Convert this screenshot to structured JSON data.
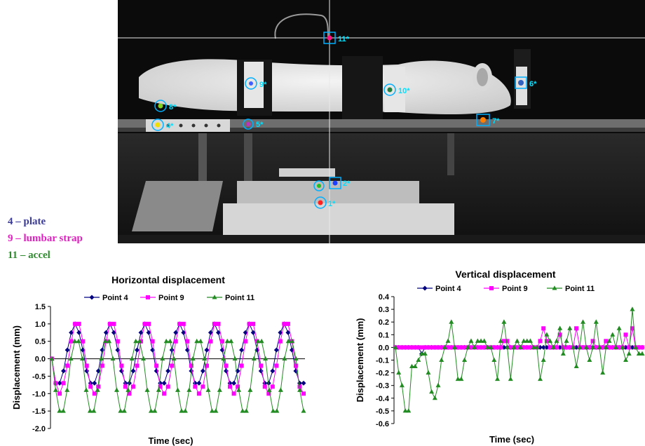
{
  "photo": {
    "description_markers": [
      "1*",
      "2*",
      "4*",
      "5*",
      "6*",
      "7*",
      "8*",
      "9*",
      "10*",
      "11*"
    ]
  },
  "key": [
    {
      "text": "4 – plate",
      "color": "#3b3b9b"
    },
    {
      "text": "9 – lumbar strap",
      "color": "#e020c0"
    },
    {
      "text": "11 – accel",
      "color": "#2e8b2e"
    }
  ],
  "chart_data": [
    {
      "type": "line",
      "title": "Horizontal displacement",
      "xlabel": "Time (sec)",
      "ylabel": "Displacement (mm)",
      "ylim": [
        -2.0,
        1.5
      ],
      "yticks": [
        "1.5",
        "1.0",
        "0.5",
        "0.0",
        "-0.5",
        "-1.0",
        "-1.5",
        "-2.0"
      ],
      "grid": false,
      "legend": "top",
      "series": [
        {
          "name": "Point 4",
          "color": "#000080",
          "marker": "diamond",
          "values": [
            0,
            -0.7,
            -0.7,
            -0.35,
            0.25,
            0.75,
            1.0,
            0.75,
            0.25,
            -0.35,
            -0.7,
            -0.7,
            -0.35,
            0.25,
            0.75,
            1.0,
            0.75,
            0.25,
            -0.35,
            -0.7,
            -0.7,
            -0.35,
            0.25,
            0.75,
            1.0,
            0.75,
            0.25,
            -0.35,
            -0.7,
            -0.7,
            -0.35,
            0.25,
            0.75,
            1.0,
            0.75,
            0.25,
            -0.35,
            -0.7,
            -0.7,
            -0.35,
            0.25,
            0.75,
            1.0,
            0.75,
            0.25,
            -0.35,
            -0.7,
            -0.7,
            -0.35,
            0.25,
            0.75,
            1.0,
            0.75,
            0.25,
            -0.35,
            -0.7,
            -0.7,
            -0.35,
            0.25,
            0.75,
            1.0,
            0.75,
            0.25,
            -0.35,
            -0.7,
            -0.7
          ]
        },
        {
          "name": "Point 9",
          "color": "#ff00ff",
          "marker": "square",
          "values": [
            0,
            -0.7,
            -1.0,
            -0.7,
            -0.2,
            0.5,
            1.0,
            1.0,
            0.5,
            -0.2,
            -0.8,
            -1.0,
            -0.8,
            -0.2,
            0.5,
            1.0,
            1.0,
            0.5,
            -0.2,
            -0.8,
            -1.0,
            -0.8,
            -0.2,
            0.5,
            1.0,
            1.0,
            0.5,
            -0.2,
            -0.8,
            -1.0,
            -0.8,
            -0.2,
            0.5,
            1.0,
            1.0,
            0.5,
            -0.2,
            -0.8,
            -1.0,
            -0.8,
            -0.2,
            0.5,
            1.0,
            1.0,
            0.5,
            -0.2,
            -0.8,
            -1.0,
            -0.8,
            -0.2,
            0.5,
            1.0,
            1.0,
            0.5,
            -0.2,
            -0.8,
            -1.0,
            -0.8,
            -0.2,
            0.5,
            1.0,
            1.0,
            0.5,
            -0.2,
            -0.8,
            -1.0
          ]
        },
        {
          "name": "Point 11",
          "color": "#228b22",
          "marker": "triangle",
          "values": [
            0,
            -0.9,
            -1.5,
            -1.5,
            -0.9,
            0,
            0.5,
            0.5,
            0,
            -0.9,
            -1.5,
            -1.5,
            -0.9,
            0,
            0.5,
            0.5,
            0,
            -0.9,
            -1.5,
            -1.5,
            -0.9,
            0,
            0.5,
            0.5,
            0,
            -0.9,
            -1.5,
            -1.5,
            -0.9,
            0,
            0.5,
            0.5,
            0,
            -0.9,
            -1.5,
            -1.5,
            -0.9,
            0,
            0.5,
            0.5,
            0,
            -0.9,
            -1.5,
            -1.5,
            -0.9,
            0,
            0.5,
            0.5,
            0,
            -0.9,
            -1.5,
            -1.5,
            -0.9,
            0,
            0.5,
            0.5,
            0,
            -0.9,
            -1.5,
            -1.5,
            -0.9,
            0,
            0.5,
            0.5,
            0,
            -0.9,
            -1.5
          ]
        }
      ]
    },
    {
      "type": "line",
      "title": "Vertical displacement",
      "xlabel": "Time (sec)",
      "ylabel": "Displacement (mm)",
      "ylim": [
        -0.6,
        0.4
      ],
      "yticks": [
        "0.4",
        "0.3",
        "0.2",
        "0.1",
        "0.0",
        "-0.1",
        "-0.2",
        "-0.3",
        "-0.4",
        "-0.5",
        "-0.6"
      ],
      "grid": false,
      "legend": "top",
      "series": [
        {
          "name": "Point 4",
          "color": "#000080",
          "marker": "diamond",
          "values": [
            0,
            0,
            0,
            0,
            0,
            0,
            0,
            0,
            -0.05,
            0,
            0,
            0,
            0,
            0,
            0,
            0,
            0,
            0,
            0,
            0,
            0,
            0,
            0,
            0,
            0,
            0,
            0,
            0,
            0,
            0,
            0,
            0,
            0,
            0,
            0,
            0,
            0,
            0,
            0,
            0,
            0,
            0,
            0,
            0,
            0,
            0,
            0,
            0,
            0,
            0,
            0,
            0,
            0,
            0,
            0,
            0,
            0,
            0,
            0,
            0,
            0,
            0,
            0,
            0,
            0,
            0,
            0,
            0,
            0,
            0,
            0,
            0,
            0,
            0,
            0,
            0
          ]
        },
        {
          "name": "Point 9",
          "color": "#ff00ff",
          "marker": "square",
          "values": [
            0,
            0,
            0,
            0,
            0,
            0,
            0,
            0,
            0,
            0,
            0,
            0,
            0,
            0,
            0,
            0,
            0,
            0,
            0,
            0,
            0,
            0,
            0,
            0,
            0,
            0,
            0,
            0,
            0,
            0,
            0,
            0,
            0,
            0.05,
            0.05,
            0,
            0,
            0,
            0,
            0,
            0,
            0,
            0,
            0,
            0.05,
            0.15,
            0.05,
            0,
            0,
            0,
            0.1,
            0,
            0,
            0,
            0,
            0.15,
            0,
            0,
            0,
            0,
            0.05,
            0,
            0,
            0,
            0.05,
            0,
            0,
            0,
            0,
            0,
            0.1,
            0,
            0.15,
            0,
            0,
            0
          ]
        },
        {
          "name": "Point 11",
          "color": "#228b22",
          "marker": "triangle",
          "values": [
            0,
            -0.2,
            -0.3,
            -0.5,
            -0.5,
            -0.15,
            -0.15,
            -0.1,
            -0.05,
            -0.05,
            -0.2,
            -0.35,
            -0.4,
            -0.3,
            -0.1,
            0,
            0.05,
            0.2,
            0,
            -0.25,
            -0.25,
            -0.1,
            0,
            0.05,
            0,
            0.05,
            0.05,
            0.05,
            0,
            0,
            -0.1,
            -0.25,
            0.05,
            0.2,
            0,
            -0.25,
            0,
            0.05,
            0,
            0.05,
            0.05,
            0.05,
            0,
            0,
            -0.25,
            -0.1,
            0.1,
            0.05,
            0,
            0.05,
            0.15,
            -0.05,
            0.05,
            0.15,
            0,
            -0.15,
            0,
            0.2,
            0,
            -0.1,
            0,
            0.2,
            0,
            -0.2,
            0,
            0.05,
            0.1,
            0,
            0.15,
            0,
            -0.1,
            -0.05,
            0.3,
            0,
            -0.05,
            -0.05
          ]
        }
      ]
    }
  ]
}
